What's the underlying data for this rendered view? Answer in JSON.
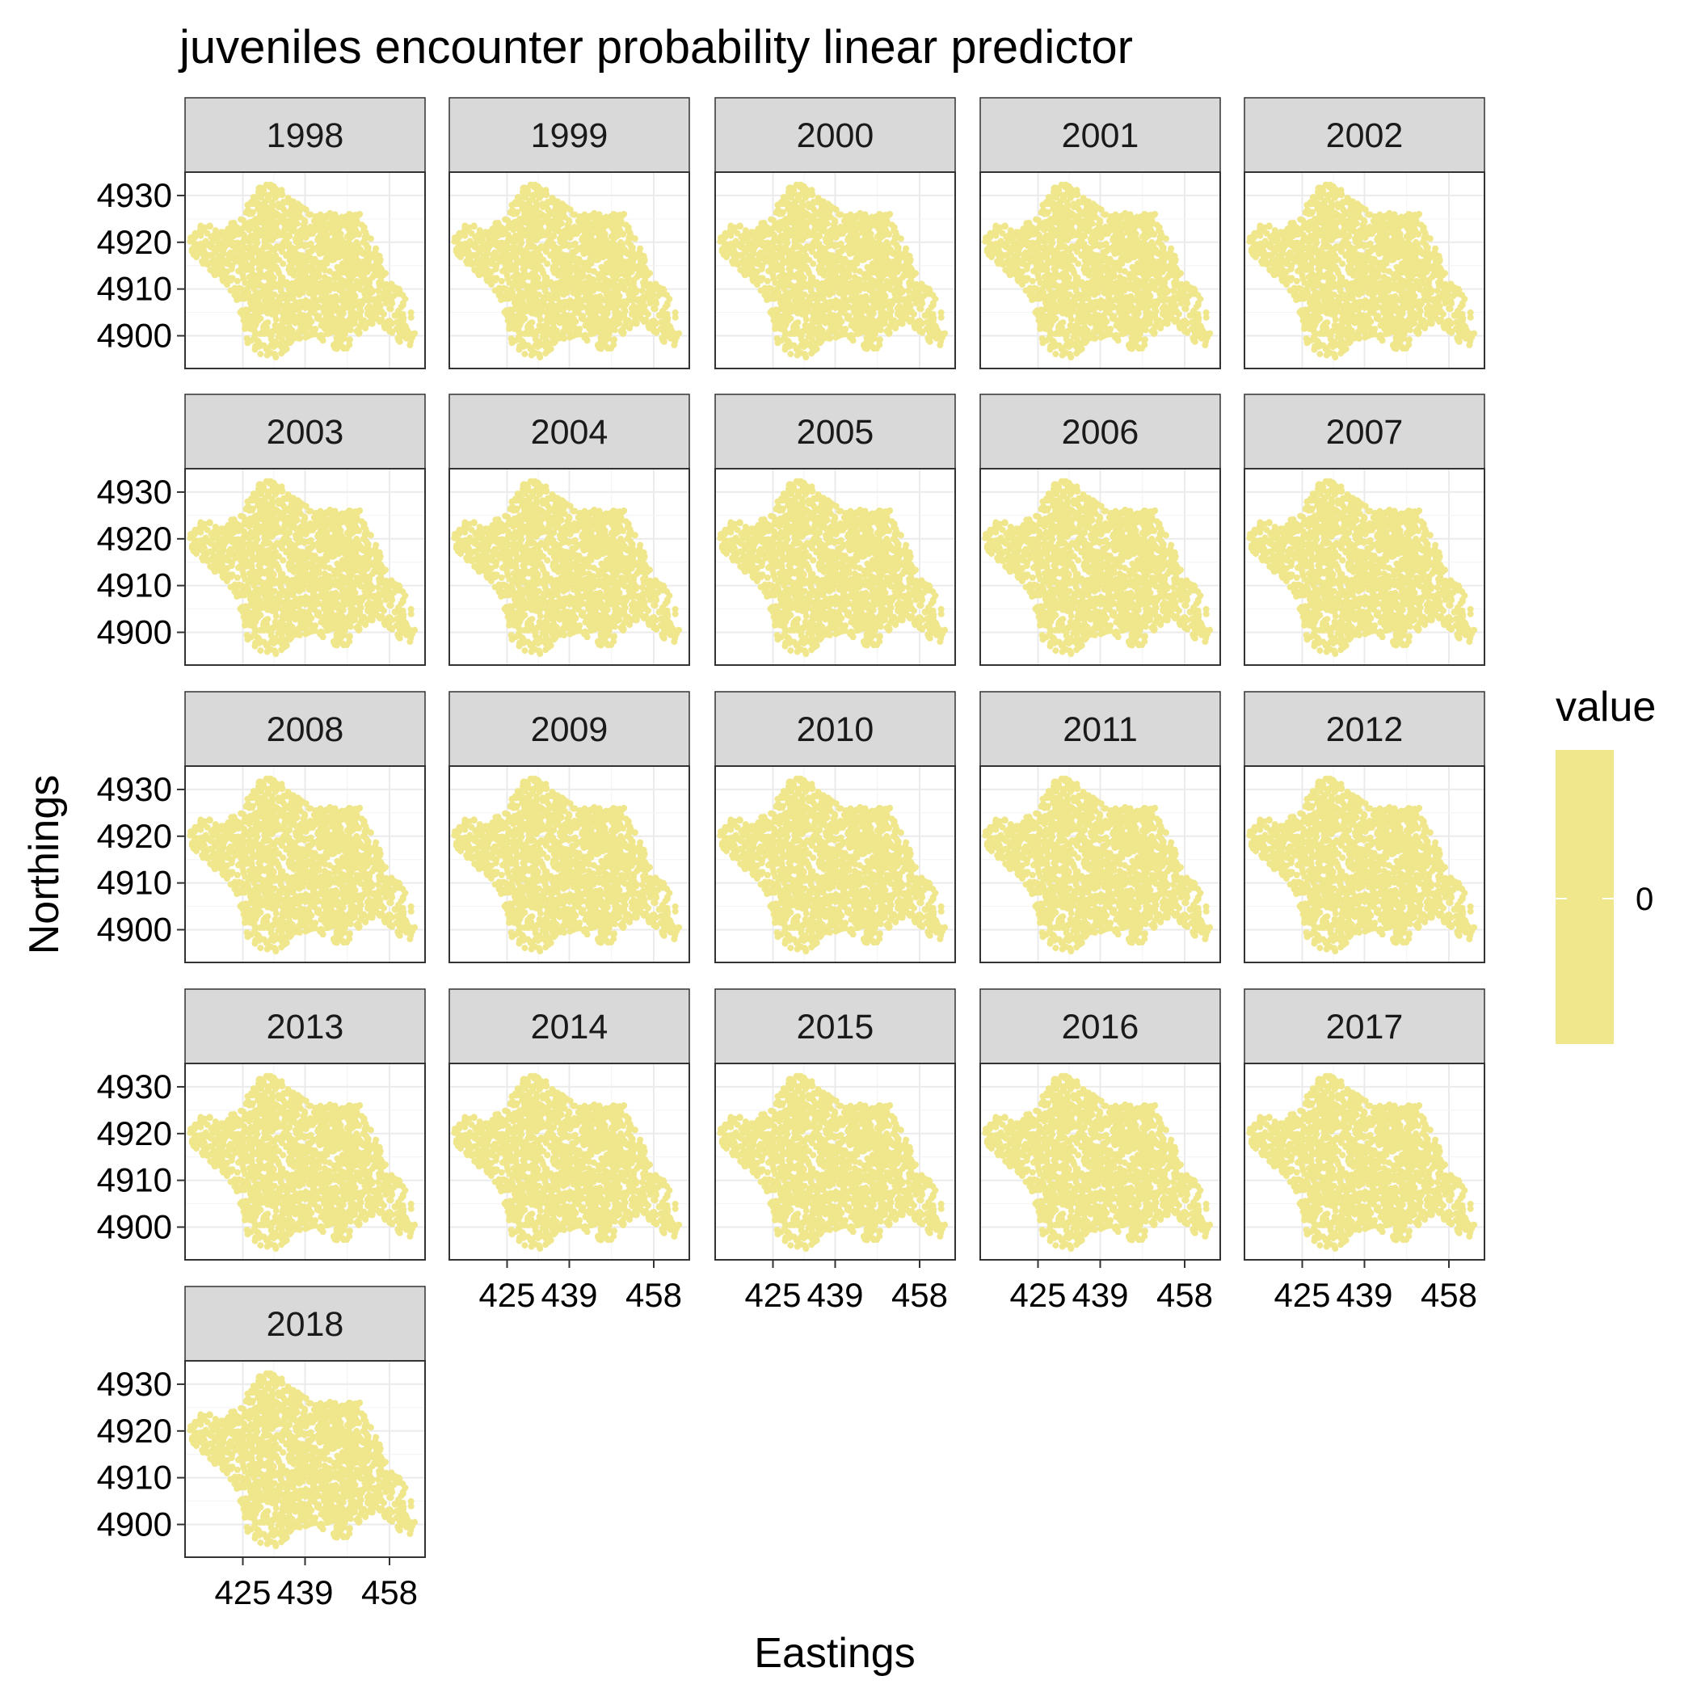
{
  "chart_data": {
    "type": "scatter",
    "title": "juveniles encounter probability linear predictor",
    "xlabel": "Eastings",
    "ylabel": "Northings",
    "facet_variable": "year",
    "facets": [
      "1998",
      "1999",
      "2000",
      "2001",
      "2002",
      "2003",
      "2004",
      "2005",
      "2006",
      "2007",
      "2008",
      "2009",
      "2010",
      "2011",
      "2012",
      "2013",
      "2014",
      "2015",
      "2016",
      "2017",
      "2018"
    ],
    "ncol": 5,
    "x_ticks": [
      425,
      439,
      458
    ],
    "x_tick_labels": [
      "425",
      "439",
      "458"
    ],
    "y_ticks": [
      4900,
      4910,
      4920,
      4930
    ],
    "y_tick_labels": [
      "4900",
      "4910",
      "4920",
      "4930"
    ],
    "xlim": [
      412,
      466
    ],
    "ylim": [
      4893,
      4935
    ],
    "point_color": "#F0E68C",
    "grid": true,
    "legend": {
      "title": "value",
      "position": "right",
      "labels": [
        "0"
      ],
      "color": "#F0E68C"
    },
    "value_all_points": 0
  }
}
